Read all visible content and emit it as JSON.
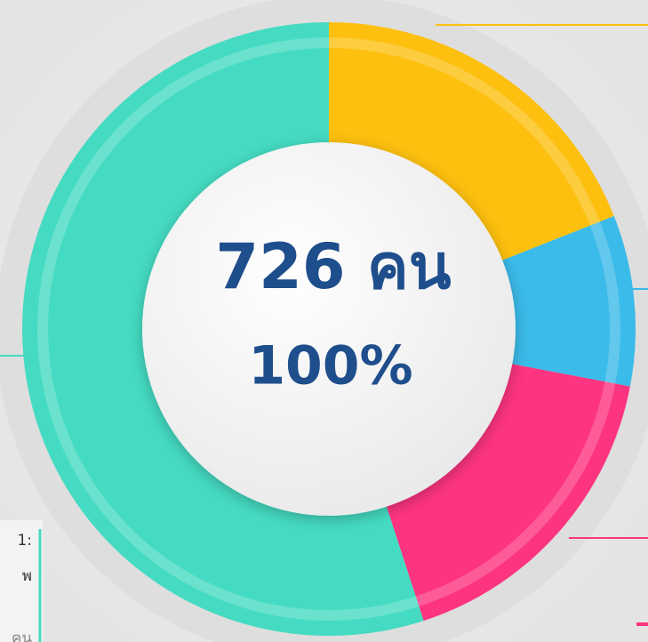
{
  "chart_data": {
    "type": "donut",
    "center_title": "726 คน",
    "center_subtitle": "100%",
    "values": [
      19,
      9,
      17,
      55
    ],
    "colors": [
      "#fdc00f",
      "#3bbbe9",
      "#fd3480",
      "#45dbc2"
    ],
    "annotations": [
      "1:",
      "พ",
      "คน"
    ]
  }
}
